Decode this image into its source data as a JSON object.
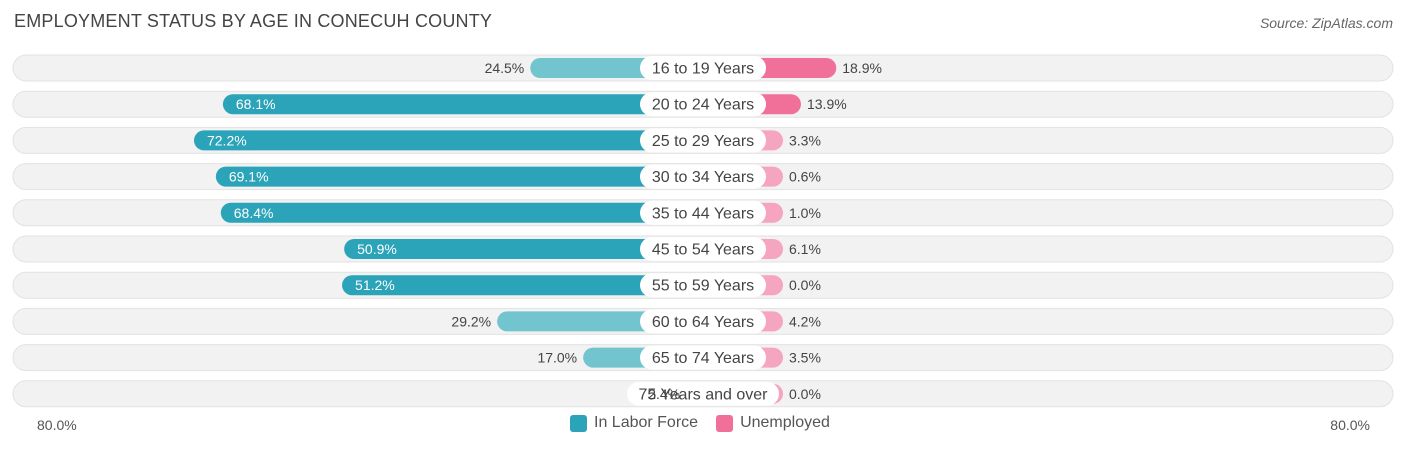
{
  "header": {
    "title": "EMPLOYMENT STATUS BY AGE IN CONECUH COUNTY",
    "source": "Source: ZipAtlas.com"
  },
  "legend": {
    "labor_label": "In Labor Force",
    "unemployed_label": "Unemployed"
  },
  "axis": {
    "left_label": "80.0%",
    "right_label": "80.0%"
  },
  "colors": {
    "labor_strong": "#2ba3b8",
    "labor_light": "#72c4cf",
    "unemployed_strong": "#f0709a",
    "unemployed_light": "#f5a5bf",
    "track": "#f2f2f2",
    "track_border": "#e2e2e2"
  },
  "chart_data": {
    "type": "bar",
    "orientation": "horizontal-diverging",
    "max": 80.0,
    "categories": [
      "16 to 19 Years",
      "20 to 24 Years",
      "25 to 29 Years",
      "30 to 34 Years",
      "35 to 44 Years",
      "45 to 54 Years",
      "55 to 59 Years",
      "60 to 64 Years",
      "65 to 74 Years",
      "75 Years and over"
    ],
    "series": [
      {
        "name": "In Labor Force",
        "values": [
          24.5,
          68.1,
          72.2,
          69.1,
          68.4,
          50.9,
          51.2,
          29.2,
          17.0,
          2.4
        ],
        "labels": [
          "24.5%",
          "68.1%",
          "72.2%",
          "69.1%",
          "68.4%",
          "50.9%",
          "51.2%",
          "29.2%",
          "17.0%",
          "2.4%"
        ]
      },
      {
        "name": "Unemployed",
        "values": [
          18.9,
          13.9,
          3.3,
          0.6,
          1.0,
          6.1,
          0.0,
          4.2,
          3.5,
          0.0
        ],
        "labels": [
          "18.9%",
          "13.9%",
          "3.3%",
          "0.6%",
          "1.0%",
          "6.1%",
          "0.0%",
          "4.2%",
          "3.5%",
          "0.0%"
        ]
      }
    ]
  }
}
